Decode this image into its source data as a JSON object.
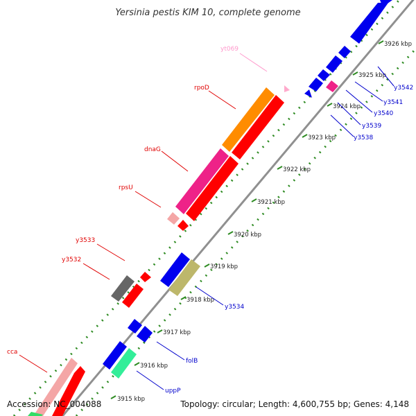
{
  "title": "Yersinia pestis KIM 10, complete genome",
  "footer": {
    "accession": "Accession: NC_004088",
    "summary": "Topology: circular; Length: 4,600,755 bp; Genes: 4,148"
  },
  "colors": {
    "backbone": "#909090",
    "ticks": "#2e8b22",
    "red_label": "#e00000",
    "blue_label": "#0000cc",
    "pink_label": "#ff99cc"
  },
  "kbp_labels": [
    "3915 kbp",
    "3916 kbp",
    "3917 kbp",
    "3918 kbp",
    "3919 kbp",
    "3920 kbp",
    "3921 kbp",
    "3922 kbp",
    "3923 kbp",
    "3924 kbp",
    "3925 kbp",
    "3926 kbp"
  ],
  "labels": {
    "cca": "cca",
    "y3532": "y3532",
    "y3533": "y3533",
    "rpsU": "rpsU",
    "dnaG": "dnaG",
    "rpoD": "rpoD",
    "yt069": "yt069",
    "y3534": "y3534",
    "folB": "folB",
    "uppP": "uppP",
    "y3538": "y3538",
    "y3539": "y3539",
    "y3540": "y3540",
    "y3541": "y3541",
    "y3542": "y3542"
  }
}
